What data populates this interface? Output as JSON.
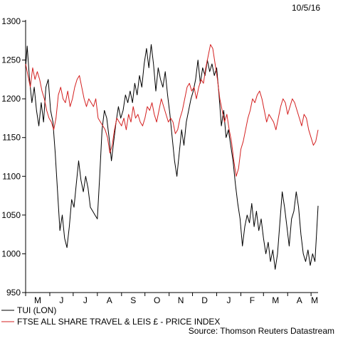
{
  "chart_data": {
    "type": "line",
    "date_label": "10/5/16",
    "source": "Source: Thomson Reuters Datastream",
    "ylim": [
      950,
      1300
    ],
    "yticks": [
      950,
      1000,
      1050,
      1100,
      1150,
      1200,
      1250,
      1300
    ],
    "x_range": [
      "2015-05-01",
      "2016-05-10"
    ],
    "month_labels": [
      "M",
      "J",
      "J",
      "A",
      "S",
      "O",
      "N",
      "D",
      "J",
      "F",
      "M",
      "A",
      "M"
    ],
    "series": [
      {
        "name": "TUI (LON)",
        "color": "#000000",
        "points": [
          [
            "2015-05-01",
            1240
          ],
          [
            "2015-05-03",
            1268
          ],
          [
            "2015-05-06",
            1225
          ],
          [
            "2015-05-09",
            1195
          ],
          [
            "2015-05-12",
            1215
          ],
          [
            "2015-05-15",
            1185
          ],
          [
            "2015-05-18",
            1165
          ],
          [
            "2015-05-21",
            1195
          ],
          [
            "2015-05-24",
            1170
          ],
          [
            "2015-05-27",
            1215
          ],
          [
            "2015-05-30",
            1225
          ],
          [
            "2015-06-02",
            1185
          ],
          [
            "2015-06-05",
            1170
          ],
          [
            "2015-06-08",
            1130
          ],
          [
            "2015-06-11",
            1080
          ],
          [
            "2015-06-14",
            1030
          ],
          [
            "2015-06-17",
            1050
          ],
          [
            "2015-06-20",
            1020
          ],
          [
            "2015-06-23",
            1008
          ],
          [
            "2015-06-26",
            1035
          ],
          [
            "2015-06-29",
            1070
          ],
          [
            "2015-07-02",
            1060
          ],
          [
            "2015-07-05",
            1090
          ],
          [
            "2015-07-08",
            1120
          ],
          [
            "2015-07-11",
            1095
          ],
          [
            "2015-07-14",
            1080
          ],
          [
            "2015-07-17",
            1100
          ],
          [
            "2015-07-20",
            1085
          ],
          [
            "2015-07-23",
            1060
          ],
          [
            "2015-07-26",
            1055
          ],
          [
            "2015-07-29",
            1050
          ],
          [
            "2015-08-01",
            1045
          ],
          [
            "2015-08-04",
            1100
          ],
          [
            "2015-08-07",
            1160
          ],
          [
            "2015-08-10",
            1185
          ],
          [
            "2015-08-13",
            1175
          ],
          [
            "2015-08-16",
            1150
          ],
          [
            "2015-08-19",
            1120
          ],
          [
            "2015-08-22",
            1145
          ],
          [
            "2015-08-25",
            1170
          ],
          [
            "2015-08-28",
            1190
          ],
          [
            "2015-08-31",
            1175
          ],
          [
            "2015-09-03",
            1185
          ],
          [
            "2015-09-06",
            1205
          ],
          [
            "2015-09-09",
            1195
          ],
          [
            "2015-09-12",
            1210
          ],
          [
            "2015-09-15",
            1195
          ],
          [
            "2015-09-18",
            1220
          ],
          [
            "2015-09-21",
            1205
          ],
          [
            "2015-09-24",
            1230
          ],
          [
            "2015-09-27",
            1215
          ],
          [
            "2015-09-30",
            1245
          ],
          [
            "2015-10-03",
            1265
          ],
          [
            "2015-10-06",
            1240
          ],
          [
            "2015-10-09",
            1270
          ],
          [
            "2015-10-12",
            1245
          ],
          [
            "2015-10-15",
            1210
          ],
          [
            "2015-10-18",
            1240
          ],
          [
            "2015-10-21",
            1225
          ],
          [
            "2015-10-24",
            1215
          ],
          [
            "2015-10-27",
            1235
          ],
          [
            "2015-10-30",
            1205
          ],
          [
            "2015-11-02",
            1180
          ],
          [
            "2015-11-05",
            1150
          ],
          [
            "2015-11-08",
            1120
          ],
          [
            "2015-11-11",
            1100
          ],
          [
            "2015-11-14",
            1130
          ],
          [
            "2015-11-17",
            1160
          ],
          [
            "2015-11-20",
            1140
          ],
          [
            "2015-11-23",
            1170
          ],
          [
            "2015-11-26",
            1185
          ],
          [
            "2015-11-29",
            1200
          ],
          [
            "2015-12-02",
            1210
          ],
          [
            "2015-12-05",
            1225
          ],
          [
            "2015-12-08",
            1250
          ],
          [
            "2015-12-11",
            1220
          ],
          [
            "2015-12-14",
            1240
          ],
          [
            "2015-12-17",
            1230
          ],
          [
            "2015-12-20",
            1250
          ],
          [
            "2015-12-23",
            1235
          ],
          [
            "2015-12-26",
            1245
          ],
          [
            "2015-12-29",
            1230
          ],
          [
            "2016-01-01",
            1240
          ],
          [
            "2016-01-04",
            1205
          ],
          [
            "2016-01-07",
            1165
          ],
          [
            "2016-01-10",
            1185
          ],
          [
            "2016-01-13",
            1150
          ],
          [
            "2016-01-16",
            1160
          ],
          [
            "2016-01-19",
            1140
          ],
          [
            "2016-01-22",
            1120
          ],
          [
            "2016-01-25",
            1090
          ],
          [
            "2016-01-28",
            1065
          ],
          [
            "2016-01-31",
            1045
          ],
          [
            "2016-02-03",
            1010
          ],
          [
            "2016-02-06",
            1035
          ],
          [
            "2016-02-09",
            1050
          ],
          [
            "2016-02-12",
            1040
          ],
          [
            "2016-02-15",
            1065
          ],
          [
            "2016-02-18",
            1035
          ],
          [
            "2016-02-21",
            1055
          ],
          [
            "2016-02-24",
            1030
          ],
          [
            "2016-02-27",
            1045
          ],
          [
            "2016-03-01",
            1020
          ],
          [
            "2016-03-04",
            1000
          ],
          [
            "2016-03-07",
            1015
          ],
          [
            "2016-03-10",
            990
          ],
          [
            "2016-03-13",
            1005
          ],
          [
            "2016-03-16",
            980
          ],
          [
            "2016-03-19",
            1000
          ],
          [
            "2016-03-22",
            1040
          ],
          [
            "2016-03-25",
            1080
          ],
          [
            "2016-03-28",
            1060
          ],
          [
            "2016-03-31",
            1035
          ],
          [
            "2016-04-03",
            1010
          ],
          [
            "2016-04-06",
            1045
          ],
          [
            "2016-04-09",
            1055
          ],
          [
            "2016-04-12",
            1080
          ],
          [
            "2016-04-15",
            1060
          ],
          [
            "2016-04-18",
            1025
          ],
          [
            "2016-04-21",
            1000
          ],
          [
            "2016-04-24",
            990
          ],
          [
            "2016-04-27",
            1005
          ],
          [
            "2016-04-30",
            985
          ],
          [
            "2016-05-03",
            1000
          ],
          [
            "2016-05-06",
            990
          ],
          [
            "2016-05-08",
            1025
          ],
          [
            "2016-05-10",
            1062
          ]
        ]
      },
      {
        "name": "FTSE ALL SHARE TRAVEL & LEIS £ - PRICE INDEX",
        "color": "#d42020",
        "points": [
          [
            "2015-05-01",
            1245
          ],
          [
            "2015-05-04",
            1230
          ],
          [
            "2015-05-07",
            1215
          ],
          [
            "2015-05-10",
            1240
          ],
          [
            "2015-05-13",
            1225
          ],
          [
            "2015-05-16",
            1235
          ],
          [
            "2015-05-19",
            1225
          ],
          [
            "2015-05-22",
            1210
          ],
          [
            "2015-05-25",
            1200
          ],
          [
            "2015-05-28",
            1185
          ],
          [
            "2015-05-31",
            1175
          ],
          [
            "2015-06-03",
            1170
          ],
          [
            "2015-06-06",
            1160
          ],
          [
            "2015-06-09",
            1175
          ],
          [
            "2015-06-12",
            1205
          ],
          [
            "2015-06-15",
            1215
          ],
          [
            "2015-06-18",
            1200
          ],
          [
            "2015-06-21",
            1195
          ],
          [
            "2015-06-24",
            1210
          ],
          [
            "2015-06-27",
            1190
          ],
          [
            "2015-06-30",
            1200
          ],
          [
            "2015-07-03",
            1215
          ],
          [
            "2015-07-06",
            1225
          ],
          [
            "2015-07-09",
            1230
          ],
          [
            "2015-07-12",
            1215
          ],
          [
            "2015-07-15",
            1200
          ],
          [
            "2015-07-18",
            1190
          ],
          [
            "2015-07-21",
            1200
          ],
          [
            "2015-07-24",
            1195
          ],
          [
            "2015-07-27",
            1190
          ],
          [
            "2015-07-30",
            1200
          ],
          [
            "2015-08-02",
            1175
          ],
          [
            "2015-08-05",
            1170
          ],
          [
            "2015-08-08",
            1165
          ],
          [
            "2015-08-11",
            1160
          ],
          [
            "2015-08-14",
            1150
          ],
          [
            "2015-08-17",
            1130
          ],
          [
            "2015-08-20",
            1140
          ],
          [
            "2015-08-23",
            1160
          ],
          [
            "2015-08-26",
            1175
          ],
          [
            "2015-08-29",
            1170
          ],
          [
            "2015-09-01",
            1165
          ],
          [
            "2015-09-04",
            1175
          ],
          [
            "2015-09-07",
            1160
          ],
          [
            "2015-09-10",
            1180
          ],
          [
            "2015-09-13",
            1170
          ],
          [
            "2015-09-16",
            1190
          ],
          [
            "2015-09-19",
            1175
          ],
          [
            "2015-09-22",
            1180
          ],
          [
            "2015-09-25",
            1170
          ],
          [
            "2015-09-28",
            1165
          ],
          [
            "2015-10-01",
            1175
          ],
          [
            "2015-10-04",
            1190
          ],
          [
            "2015-10-07",
            1185
          ],
          [
            "2015-10-10",
            1195
          ],
          [
            "2015-10-13",
            1180
          ],
          [
            "2015-10-16",
            1170
          ],
          [
            "2015-10-19",
            1185
          ],
          [
            "2015-10-22",
            1200
          ],
          [
            "2015-10-25",
            1190
          ],
          [
            "2015-10-28",
            1180
          ],
          [
            "2015-10-31",
            1170
          ],
          [
            "2015-11-03",
            1175
          ],
          [
            "2015-11-06",
            1170
          ],
          [
            "2015-11-09",
            1155
          ],
          [
            "2015-11-12",
            1160
          ],
          [
            "2015-11-15",
            1175
          ],
          [
            "2015-11-18",
            1185
          ],
          [
            "2015-11-21",
            1200
          ],
          [
            "2015-11-24",
            1215
          ],
          [
            "2015-11-27",
            1220
          ],
          [
            "2015-11-30",
            1210
          ],
          [
            "2015-12-03",
            1215
          ],
          [
            "2015-12-06",
            1200
          ],
          [
            "2015-12-09",
            1215
          ],
          [
            "2015-12-12",
            1225
          ],
          [
            "2015-12-15",
            1220
          ],
          [
            "2015-12-18",
            1240
          ],
          [
            "2015-12-21",
            1255
          ],
          [
            "2015-12-24",
            1270
          ],
          [
            "2015-12-27",
            1265
          ],
          [
            "2015-12-30",
            1245
          ],
          [
            "2016-01-02",
            1225
          ],
          [
            "2016-01-05",
            1200
          ],
          [
            "2016-01-08",
            1185
          ],
          [
            "2016-01-11",
            1170
          ],
          [
            "2016-01-14",
            1180
          ],
          [
            "2016-01-17",
            1160
          ],
          [
            "2016-01-20",
            1145
          ],
          [
            "2016-01-23",
            1120
          ],
          [
            "2016-01-26",
            1100
          ],
          [
            "2016-01-29",
            1110
          ],
          [
            "2016-02-01",
            1135
          ],
          [
            "2016-02-04",
            1145
          ],
          [
            "2016-02-07",
            1160
          ],
          [
            "2016-02-10",
            1175
          ],
          [
            "2016-02-13",
            1185
          ],
          [
            "2016-02-16",
            1200
          ],
          [
            "2016-02-19",
            1195
          ],
          [
            "2016-02-22",
            1205
          ],
          [
            "2016-02-25",
            1210
          ],
          [
            "2016-02-28",
            1200
          ],
          [
            "2016-03-02",
            1185
          ],
          [
            "2016-03-05",
            1170
          ],
          [
            "2016-03-08",
            1180
          ],
          [
            "2016-03-11",
            1175
          ],
          [
            "2016-03-14",
            1170
          ],
          [
            "2016-03-17",
            1160
          ],
          [
            "2016-03-20",
            1175
          ],
          [
            "2016-03-23",
            1190
          ],
          [
            "2016-03-26",
            1200
          ],
          [
            "2016-03-29",
            1195
          ],
          [
            "2016-04-01",
            1180
          ],
          [
            "2016-04-04",
            1190
          ],
          [
            "2016-04-07",
            1200
          ],
          [
            "2016-04-10",
            1195
          ],
          [
            "2016-04-13",
            1185
          ],
          [
            "2016-04-16",
            1175
          ],
          [
            "2016-04-19",
            1165
          ],
          [
            "2016-04-22",
            1180
          ],
          [
            "2016-04-25",
            1175
          ],
          [
            "2016-04-28",
            1160
          ],
          [
            "2016-05-01",
            1150
          ],
          [
            "2016-05-04",
            1140
          ],
          [
            "2016-05-07",
            1145
          ],
          [
            "2016-05-10",
            1160
          ]
        ]
      }
    ]
  }
}
